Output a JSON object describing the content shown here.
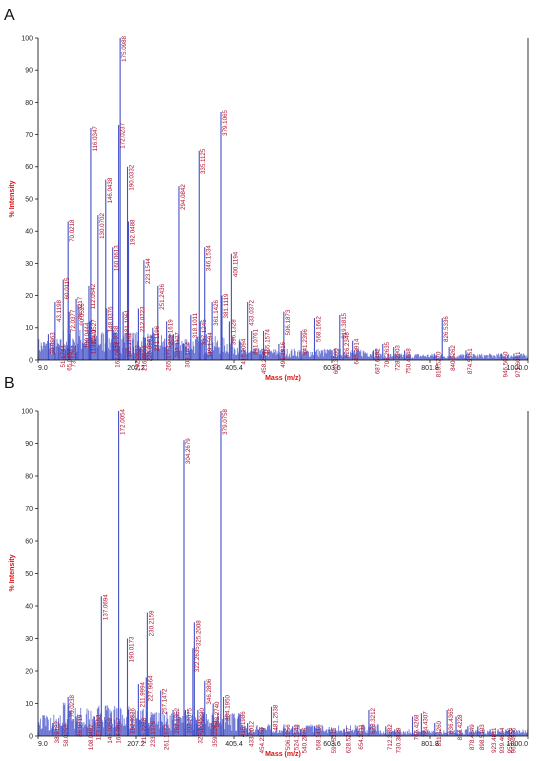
{
  "colors": {
    "spectrum": "#4350c8",
    "axis_title": "#dd1111",
    "peak_label": "#b0142e",
    "axis": "#000000"
  },
  "chart_data": [
    {
      "type": "bar",
      "panel": "A",
      "xlabel": "Mass (m/z)",
      "ylabel": "% Intensity",
      "xlim": [
        9.0,
        1000.0
      ],
      "ylim": [
        0,
        100
      ],
      "x_ticks": [
        "9.0",
        "207.2",
        "405.4",
        "603.6",
        "801.8",
        "1000.0"
      ],
      "y_ticks": [
        0,
        10,
        20,
        30,
        40,
        50,
        60,
        70,
        80,
        90,
        100
      ],
      "peaks": [
        {
          "x": 30.0963,
          "y": 8,
          "label": "30.0963"
        },
        {
          "x": 51.1744,
          "y": 4,
          "label": "51.1744"
        },
        {
          "x": 43.1198,
          "y": 18,
          "label": "43.1198"
        },
        {
          "x": 60.0115,
          "y": 25,
          "label": "60.0115"
        },
        {
          "x": 70.0218,
          "y": 43,
          "label": "70.0218"
        },
        {
          "x": 65.0457,
          "y": 3,
          "label": "65.0457"
        },
        {
          "x": 73.1262,
          "y": 4,
          "label": "73.1262"
        },
        {
          "x": 72.0377,
          "y": 15,
          "label": "72.0377"
        },
        {
          "x": 86.0217,
          "y": 19,
          "label": "86.0217"
        },
        {
          "x": 90.0526,
          "y": 17,
          "label": "90.0526"
        },
        {
          "x": 100.0444,
          "y": 11,
          "label": "100.0444"
        },
        {
          "x": 112.0542,
          "y": 23,
          "label": "112.0542"
        },
        {
          "x": 113.0571,
          "y": 9,
          "label": "113.0571"
        },
        {
          "x": 114.0527,
          "y": 12,
          "label": "114.0527"
        },
        {
          "x": 116.0347,
          "y": 72,
          "label": "116.0347"
        },
        {
          "x": 130.0702,
          "y": 45,
          "label": "130.0702"
        },
        {
          "x": 146.0438,
          "y": 56,
          "label": "146.0438"
        },
        {
          "x": 148.0376,
          "y": 16,
          "label": "148.0376"
        },
        {
          "x": 159.0338,
          "y": 10,
          "label": "159.0338"
        },
        {
          "x": 160.0613,
          "y": 35,
          "label": "160.0613"
        },
        {
          "x": 162.0634,
          "y": 5,
          "label": "162.0634"
        },
        {
          "x": 172.0237,
          "y": 73,
          "label": "172.0237"
        },
        {
          "x": 175.0988,
          "y": 100,
          "label": "175.0988"
        },
        {
          "x": 181.1061,
          "y": 15,
          "label": "181.1061"
        },
        {
          "x": 185.1162,
          "y": 8,
          "label": "185.1162"
        },
        {
          "x": 190.0332,
          "y": 60,
          "label": "190.0332"
        },
        {
          "x": 192.0488,
          "y": 43,
          "label": "192.0488"
        },
        {
          "x": 202.0628,
          "y": 4,
          "label": "202.0628"
        },
        {
          "x": 212.0723,
          "y": 16,
          "label": "212.0723"
        },
        {
          "x": 216.0651,
          "y": 4,
          "label": "216.0651"
        },
        {
          "x": 223.1544,
          "y": 31,
          "label": "223.1544"
        },
        {
          "x": 226.0961,
          "y": 7,
          "label": "226.0961"
        },
        {
          "x": 241.1196,
          "y": 10,
          "label": "241.1196"
        },
        {
          "x": 251.2436,
          "y": 23,
          "label": "251.2436"
        },
        {
          "x": 265.1771,
          "y": 4,
          "label": "265.1771"
        },
        {
          "x": 269.1619,
          "y": 12,
          "label": "269.1619"
        },
        {
          "x": 283.1127,
          "y": 8,
          "label": "283.1127"
        },
        {
          "x": 294.0842,
          "y": 54,
          "label": "294.0842"
        },
        {
          "x": 303.1654,
          "y": 5,
          "label": "303.1654"
        },
        {
          "x": 318.1011,
          "y": 14,
          "label": "318.1011"
        },
        {
          "x": 335.1125,
          "y": 65,
          "label": "335.1125"
        },
        {
          "x": 337.1245,
          "y": 12,
          "label": "337.1245"
        },
        {
          "x": 346.1534,
          "y": 35,
          "label": "346.1534"
        },
        {
          "x": 349.1594,
          "y": 8,
          "label": "349.1594"
        },
        {
          "x": 361.1426,
          "y": 18,
          "label": "361.1426"
        },
        {
          "x": 379.1065,
          "y": 77,
          "label": "379.1065"
        },
        {
          "x": 381.1119,
          "y": 20,
          "label": "381.1119"
        },
        {
          "x": 396.1328,
          "y": 12,
          "label": "396.1328"
        },
        {
          "x": 400.1194,
          "y": 33,
          "label": "400.1194"
        },
        {
          "x": 416.2094,
          "y": 6,
          "label": "416.2094"
        },
        {
          "x": 433.0372,
          "y": 18,
          "label": "433.0372"
        },
        {
          "x": 441.0761,
          "y": 9,
          "label": "441.0761"
        },
        {
          "x": 458.2547,
          "y": 3,
          "label": "458.2547"
        },
        {
          "x": 465.1574,
          "y": 9,
          "label": "465.1574"
        },
        {
          "x": 496.1916,
          "y": 5,
          "label": "496.1916"
        },
        {
          "x": 506.1873,
          "y": 15,
          "label": "506.1873"
        },
        {
          "x": 541.2396,
          "y": 9,
          "label": "541.2396"
        },
        {
          "x": 568.1662,
          "y": 13,
          "label": "568.1662"
        },
        {
          "x": 603.356,
          "y": 3,
          "label": "603.3560"
        },
        {
          "x": 619.3815,
          "y": 14,
          "label": "619.3815"
        },
        {
          "x": 626.2346,
          "y": 8,
          "label": "626.2346"
        },
        {
          "x": 645.3914,
          "y": 6,
          "label": "645.3914"
        },
        {
          "x": 687.6492,
          "y": 3,
          "label": "687.6492"
        },
        {
          "x": 706.2635,
          "y": 5,
          "label": "706.2635"
        },
        {
          "x": 728.2903,
          "y": 4,
          "label": "728.2903"
        },
        {
          "x": 750.4848,
          "y": 3,
          "label": "750.4848"
        },
        {
          "x": 810.527,
          "y": 2,
          "label": "810.5270"
        },
        {
          "x": 826.5336,
          "y": 13,
          "label": "826.5336"
        },
        {
          "x": 840.5262,
          "y": 4,
          "label": "840.5262"
        },
        {
          "x": 874.5151,
          "y": 3,
          "label": "874.5151"
        },
        {
          "x": 946.565,
          "y": 2,
          "label": "946.5650"
        },
        {
          "x": 971.6051,
          "y": 2,
          "label": "971.6051"
        }
      ]
    },
    {
      "type": "bar",
      "panel": "B",
      "xlabel": "Mass (m/z)",
      "ylabel": "% Intensity",
      "xlim": [
        9.0,
        1000.0
      ],
      "ylim": [
        0,
        100
      ],
      "x_ticks": [
        "9.0",
        "207.2",
        "405.4",
        "603.6",
        "801.8",
        "1000.0"
      ],
      "y_ticks": [
        0,
        10,
        20,
        30,
        40,
        50,
        60,
        70,
        80,
        90,
        100
      ],
      "peaks": [
        {
          "x": 38.9182,
          "y": 4,
          "label": "38.9182"
        },
        {
          "x": 58.0258,
          "y": 3,
          "label": "58.0258"
        },
        {
          "x": 70.0238,
          "y": 12,
          "label": "70.0238"
        },
        {
          "x": 86.0319,
          "y": 6,
          "label": "86.0319"
        },
        {
          "x": 108.0492,
          "y": 3,
          "label": "108.0492"
        },
        {
          "x": 123.0553,
          "y": 6,
          "label": "123.0553"
        },
        {
          "x": 137.0694,
          "y": 43,
          "label": "137.0694"
        },
        {
          "x": 146.0252,
          "y": 5,
          "label": "146.0252"
        },
        {
          "x": 164.0967,
          "y": 5,
          "label": "164.0967"
        },
        {
          "x": 172.0054,
          "y": 100,
          "label": "172.0054"
        },
        {
          "x": 190.0173,
          "y": 30,
          "label": "190.0173"
        },
        {
          "x": 192.0336,
          "y": 8,
          "label": "192.0336"
        },
        {
          "x": 211.9994,
          "y": 16,
          "label": "211.9994"
        },
        {
          "x": 215.2258,
          "y": 5,
          "label": "215.2258"
        },
        {
          "x": 227.9664,
          "y": 18,
          "label": "227.9664"
        },
        {
          "x": 230.2159,
          "y": 38,
          "label": "230.2159"
        },
        {
          "x": 233.1376,
          "y": 4,
          "label": "233.1376"
        },
        {
          "x": 257.1472,
          "y": 14,
          "label": "257.1472"
        },
        {
          "x": 261.1672,
          "y": 3,
          "label": "261.1672"
        },
        {
          "x": 282.1352,
          "y": 8,
          "label": "282.1352"
        },
        {
          "x": 304.2679,
          "y": 91,
          "label": "304.2679"
        },
        {
          "x": 307.2075,
          "y": 8,
          "label": "307.2075"
        },
        {
          "x": 322.2635,
          "y": 27,
          "label": "322.2635"
        },
        {
          "x": 325.2008,
          "y": 35,
          "label": "325.2008"
        },
        {
          "x": 329.1745,
          "y": 5,
          "label": "329.1745"
        },
        {
          "x": 332.228,
          "y": 8,
          "label": "332.2280"
        },
        {
          "x": 346.2806,
          "y": 17,
          "label": "346.2806"
        },
        {
          "x": 359.226,
          "y": 4,
          "label": "359.2260"
        },
        {
          "x": 363.274,
          "y": 10,
          "label": "363.2740"
        },
        {
          "x": 379.0758,
          "y": 100,
          "label": "379.0758"
        },
        {
          "x": 384.195,
          "y": 12,
          "label": "384.1950"
        },
        {
          "x": 415.1986,
          "y": 7,
          "label": "415.1986"
        },
        {
          "x": 433.0012,
          "y": 4,
          "label": "433.0012"
        },
        {
          "x": 454.236,
          "y": 2,
          "label": "454.2360"
        },
        {
          "x": 481.2538,
          "y": 9,
          "label": "481.2538"
        },
        {
          "x": 506.1956,
          "y": 3,
          "label": "506.1956"
        },
        {
          "x": 524.1543,
          "y": 3,
          "label": "524.1543"
        },
        {
          "x": 540.2846,
          "y": 2,
          "label": "540.2846"
        },
        {
          "x": 568.1415,
          "y": 3,
          "label": "568.1415"
        },
        {
          "x": 599.5315,
          "y": 2,
          "label": "599.5315"
        },
        {
          "x": 628.5247,
          "y": 2,
          "label": "628.5247"
        },
        {
          "x": 654.3311,
          "y": 3,
          "label": "654.3311"
        },
        {
          "x": 678.3212,
          "y": 8,
          "label": "678.3212"
        },
        {
          "x": 712.3382,
          "y": 3,
          "label": "712.3382"
        },
        {
          "x": 730.3829,
          "y": 2,
          "label": "730.3829"
        },
        {
          "x": 766.4268,
          "y": 6,
          "label": "766.4268"
        },
        {
          "x": 784.4307,
          "y": 7,
          "label": "784.4307"
        },
        {
          "x": 811.426,
          "y": 4,
          "label": "811.4260"
        },
        {
          "x": 836.4365,
          "y": 8,
          "label": "836.4365"
        },
        {
          "x": 854.4228,
          "y": 6,
          "label": "854.4228"
        },
        {
          "x": 878.4549,
          "y": 3,
          "label": "878.4549"
        },
        {
          "x": 898.5103,
          "y": 3,
          "label": "898.5103"
        },
        {
          "x": 923.4811,
          "y": 2,
          "label": "923.4811"
        },
        {
          "x": 939.4664,
          "y": 2,
          "label": "939.4664"
        },
        {
          "x": 955.4926,
          "y": 2,
          "label": "955.4926"
        },
        {
          "x": 962.4935,
          "y": 2,
          "label": "962.4935"
        }
      ]
    }
  ]
}
